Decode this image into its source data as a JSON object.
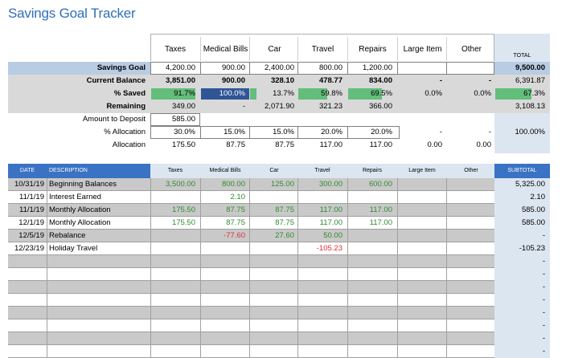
{
  "title": "Savings Goal Tracker",
  "categories": [
    "Taxes",
    "Medical Bills",
    "Car",
    "Travel",
    "Repairs",
    "Large Item",
    "Other"
  ],
  "total_label": "TOTAL",
  "summary": {
    "savings_goal": {
      "label": "Savings Goal",
      "values": [
        "4,200.00",
        "900.00",
        "2,400.00",
        "800.00",
        "1,200.00",
        "",
        ""
      ],
      "total": "9,500.00"
    },
    "current_balance": {
      "label": "Current Balance",
      "values": [
        "3,851.00",
        "900.00",
        "328.10",
        "478.77",
        "834.00",
        "-",
        "-"
      ],
      "total": "6,391.87"
    },
    "pct_saved": {
      "label": "% Saved",
      "values": [
        "91.7%",
        "100.0%",
        "13.7%",
        "59.8%",
        "69.5%",
        "0.0%",
        "0.0%"
      ],
      "fractions": [
        0.917,
        1.0,
        0.137,
        0.598,
        0.695,
        0,
        0
      ],
      "total": "67.3%",
      "total_fraction": 0.673
    },
    "remaining": {
      "label": "Remaining",
      "values": [
        "349.00",
        "-",
        "2,071.90",
        "321.23",
        "366.00",
        "",
        ""
      ],
      "total": "3,108.13"
    },
    "amount_to_deposit": {
      "label": "Amount to Deposit",
      "value": "585.00"
    },
    "pct_allocation": {
      "label": "% Allocation",
      "values": [
        "30.0%",
        "15.0%",
        "15.0%",
        "20.0%",
        "20.0%",
        "-",
        "-"
      ],
      "total": "100.00%"
    },
    "allocation": {
      "label": "Allocation",
      "values": [
        "175.50",
        "87.75",
        "87.75",
        "117.00",
        "117.00",
        "0.00",
        "0.00"
      ]
    }
  },
  "ledger": {
    "headers": {
      "date": "DATE",
      "description": "DESCRIPTION",
      "subtotal": "SUBTOTAL"
    },
    "rows": [
      {
        "date": "10/31/19",
        "description": "Beginning Balances",
        "values": [
          "3,500.00",
          "800.00",
          "125.00",
          "300.00",
          "600.00",
          "",
          ""
        ],
        "subtotal": "5,325.00",
        "shaded": true
      },
      {
        "date": "11/1/19",
        "description": "Interest Earned",
        "values": [
          "",
          "2.10",
          "",
          "",
          "",
          "",
          ""
        ],
        "subtotal": "2.10",
        "shaded": false
      },
      {
        "date": "11/1/19",
        "description": "Monthly Allocation",
        "values": [
          "175.50",
          "87.75",
          "87.75",
          "117.00",
          "117.00",
          "",
          ""
        ],
        "subtotal": "585.00",
        "shaded": true
      },
      {
        "date": "12/1/19",
        "description": "Monthly Allocation",
        "values": [
          "175.50",
          "87.75",
          "87.75",
          "117.00",
          "117.00",
          "",
          ""
        ],
        "subtotal": "585.00",
        "shaded": false
      },
      {
        "date": "12/5/19",
        "description": "Rebalance",
        "values": [
          "",
          "-77.60",
          "27.60",
          "50.00",
          "",
          "",
          ""
        ],
        "subtotal": "-",
        "shaded": true
      },
      {
        "date": "12/23/19",
        "description": "Holiday Travel",
        "values": [
          "",
          "",
          "",
          "-105.23",
          "",
          "",
          ""
        ],
        "subtotal": "-105.23",
        "shaded": false
      },
      {
        "date": "",
        "description": "",
        "values": [
          "",
          "",
          "",
          "",
          "",
          "",
          ""
        ],
        "subtotal": "-",
        "shaded": true
      },
      {
        "date": "",
        "description": "",
        "values": [
          "",
          "",
          "",
          "",
          "",
          "",
          ""
        ],
        "subtotal": "-",
        "shaded": false
      },
      {
        "date": "",
        "description": "",
        "values": [
          "",
          "",
          "",
          "",
          "",
          "",
          ""
        ],
        "subtotal": "-",
        "shaded": true
      },
      {
        "date": "",
        "description": "",
        "values": [
          "",
          "",
          "",
          "",
          "",
          "",
          ""
        ],
        "subtotal": "-",
        "shaded": false
      },
      {
        "date": "",
        "description": "",
        "values": [
          "",
          "",
          "",
          "",
          "",
          "",
          ""
        ],
        "subtotal": "-",
        "shaded": true
      },
      {
        "date": "",
        "description": "",
        "values": [
          "",
          "",
          "",
          "",
          "",
          "",
          ""
        ],
        "subtotal": "-",
        "shaded": false
      },
      {
        "date": "",
        "description": "",
        "values": [
          "",
          "",
          "",
          "",
          "",
          "",
          ""
        ],
        "subtotal": "-",
        "shaded": true
      },
      {
        "date": "",
        "description": "",
        "values": [
          "",
          "",
          "",
          "",
          "",
          "",
          ""
        ],
        "subtotal": "-",
        "shaded": false
      }
    ]
  },
  "colors": {
    "title": "#2f6fb8",
    "header_blue": "#3a72c4",
    "light_blue": "#dce6f1",
    "goal_blue": "#b8cce4",
    "gray": "#d9d9d9",
    "row_gray": "#c9c9c9",
    "bar_green": "#63be7b",
    "bar_blue": "#2f5597",
    "positive": "#2e8b2e",
    "negative": "#e03030"
  }
}
